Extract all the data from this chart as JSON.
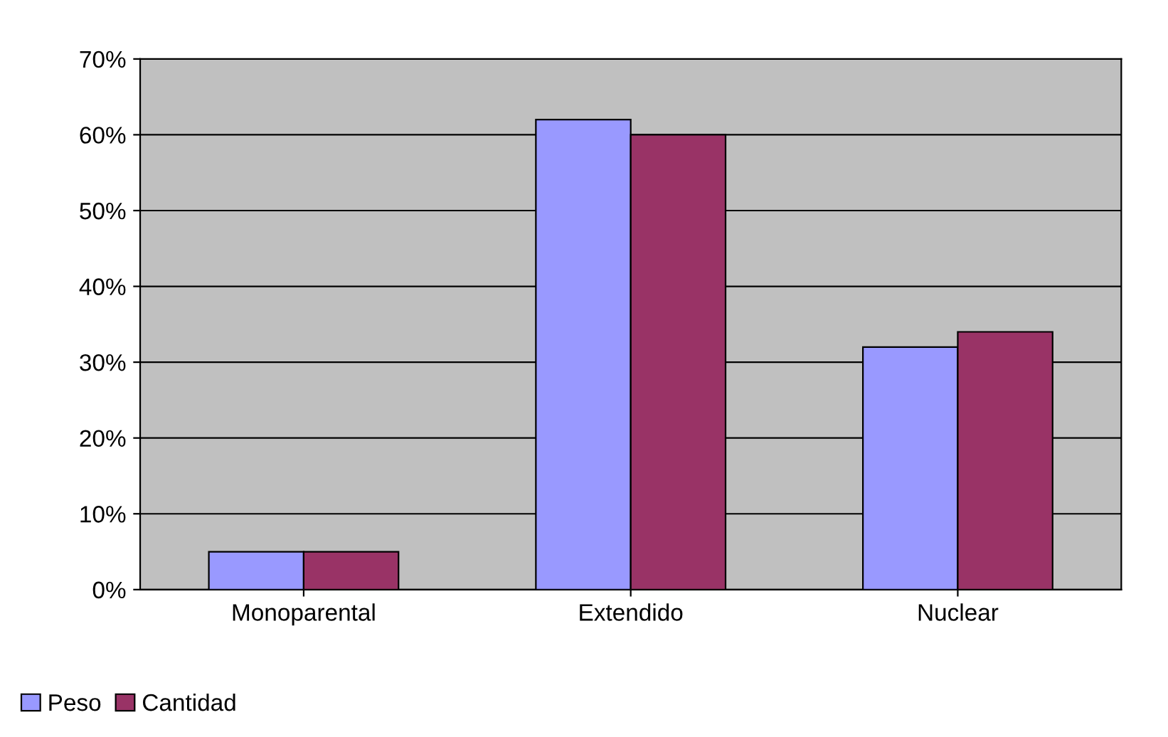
{
  "chart_data": {
    "type": "bar",
    "categories": [
      "Monoparental",
      "Extendido",
      "Nuclear"
    ],
    "series": [
      {
        "name": "Peso",
        "color": "#9999ff",
        "values": [
          5,
          62,
          32
        ]
      },
      {
        "name": "Cantidad",
        "color": "#993366",
        "values": [
          5,
          60,
          34
        ]
      }
    ],
    "ylim": [
      0,
      70
    ],
    "yticks": [
      {
        "value": 0,
        "label": "0%"
      },
      {
        "value": 10,
        "label": "10%"
      },
      {
        "value": 20,
        "label": "20%"
      },
      {
        "value": 30,
        "label": "30%"
      },
      {
        "value": 40,
        "label": "40%"
      },
      {
        "value": 50,
        "label": "50%"
      },
      {
        "value": 60,
        "label": "60%"
      },
      {
        "value": 70,
        "label": "70%"
      }
    ],
    "grid": "y",
    "legend": "bottom left"
  }
}
